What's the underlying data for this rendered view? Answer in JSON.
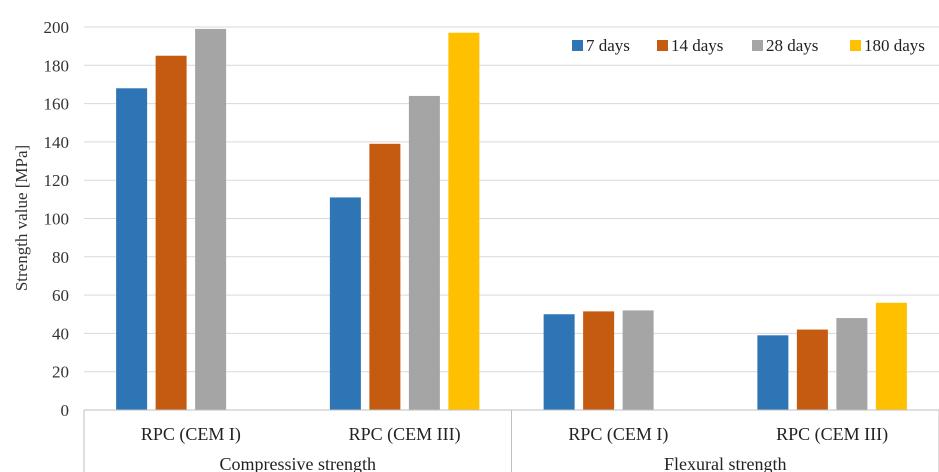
{
  "chart_data": {
    "type": "bar",
    "ylabel": "Strength value [MPa]",
    "ylim": [
      0,
      200
    ],
    "yticks": [
      0,
      20,
      40,
      60,
      80,
      100,
      120,
      140,
      160,
      180,
      200
    ],
    "grid": true,
    "legend_position": "top-right",
    "categories": [
      "RPC (CEM I)",
      "RPC (CEM III)",
      "RPC (CEM I)",
      "RPC (CEM III)"
    ],
    "groups": [
      {
        "label": "Compressive strength",
        "categories": [
          0,
          1
        ]
      },
      {
        "label": "Flexural strength",
        "categories": [
          2,
          3
        ]
      }
    ],
    "series": [
      {
        "name": "7 days",
        "color": "#2E75B6",
        "values": [
          168,
          111,
          50,
          39
        ]
      },
      {
        "name": "14 days",
        "color": "#C55A11",
        "values": [
          185,
          139,
          51.5,
          42
        ]
      },
      {
        "name": "28 days",
        "color": "#A5A5A5",
        "values": [
          199,
          164,
          52,
          48
        ]
      },
      {
        "name": "180 days",
        "color": "#FFC000",
        "values": [
          null,
          197,
          null,
          56
        ]
      }
    ]
  }
}
